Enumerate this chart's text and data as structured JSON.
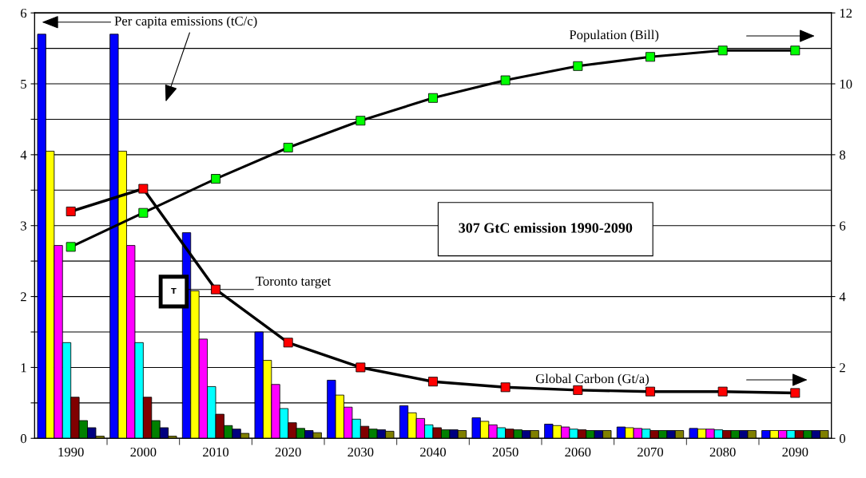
{
  "chart_data": {
    "type": "bar",
    "categories": [
      "1990",
      "2000",
      "2010",
      "2020",
      "2030",
      "2040",
      "2050",
      "2060",
      "2070",
      "2080",
      "2090"
    ],
    "series": [
      {
        "color": "#0000ff",
        "values": [
          5.7,
          5.7,
          2.9,
          1.5,
          0.82,
          0.46,
          0.29,
          0.2,
          0.16,
          0.14,
          0.11
        ]
      },
      {
        "color": "#ffff00",
        "values": [
          4.05,
          4.05,
          2.08,
          1.1,
          0.61,
          0.36,
          0.24,
          0.18,
          0.15,
          0.13,
          0.11
        ]
      },
      {
        "color": "#ff00ff",
        "values": [
          2.72,
          2.72,
          1.4,
          0.76,
          0.44,
          0.28,
          0.19,
          0.16,
          0.14,
          0.13,
          0.11
        ]
      },
      {
        "color": "#00ffff",
        "values": [
          1.35,
          1.35,
          0.73,
          0.42,
          0.27,
          0.19,
          0.15,
          0.13,
          0.13,
          0.12,
          0.11
        ]
      },
      {
        "color": "#800000",
        "values": [
          0.58,
          0.58,
          0.34,
          0.22,
          0.17,
          0.15,
          0.13,
          0.12,
          0.11,
          0.11,
          0.11
        ]
      },
      {
        "color": "#008000",
        "values": [
          0.25,
          0.25,
          0.18,
          0.14,
          0.13,
          0.12,
          0.12,
          0.11,
          0.11,
          0.11,
          0.11
        ]
      },
      {
        "color": "#000080",
        "values": [
          0.15,
          0.15,
          0.13,
          0.11,
          0.12,
          0.12,
          0.11,
          0.11,
          0.11,
          0.11,
          0.11
        ]
      },
      {
        "color": "#808000",
        "values": [
          0.03,
          0.03,
          0.07,
          0.08,
          0.1,
          0.11,
          0.11,
          0.11,
          0.11,
          0.11,
          0.11
        ]
      },
      {
        "name": "Population (Bill)",
        "type": "line",
        "axis": "y2",
        "color": "#00ff00",
        "values": [
          5.4,
          6.36,
          7.32,
          8.2,
          8.96,
          9.6,
          10.1,
          10.5,
          10.76,
          10.94,
          10.94
        ]
      },
      {
        "name": "Global Carbon (Gt/a)",
        "type": "line",
        "axis": "y2",
        "color": "#ff0000",
        "values": [
          6.4,
          7.04,
          4.2,
          2.7,
          2.0,
          1.6,
          1.44,
          1.36,
          1.32,
          1.32,
          1.28
        ]
      }
    ],
    "ylim": [
      0,
      6
    ],
    "yticks": [
      0,
      {
        "value": 0.5,
        "label": null
      },
      1,
      {
        "value": 1.5,
        "label": null
      },
      2,
      {
        "value": 2.5,
        "label": null
      },
      3,
      {
        "value": 3.5,
        "label": null
      },
      4,
      {
        "value": 4.5,
        "label": null
      },
      5,
      {
        "value": 5.5,
        "label": null
      },
      6
    ],
    "y2lim": [
      0,
      12
    ],
    "y2ticks": [
      0,
      2,
      4,
      6,
      8,
      10,
      12
    ],
    "grid": "y",
    "marker": "square",
    "legend": false,
    "annotations": [
      "Per capita emissions (tC/c)",
      "Toronto target",
      "T",
      "307 GtC emission 1990-2090"
    ]
  }
}
